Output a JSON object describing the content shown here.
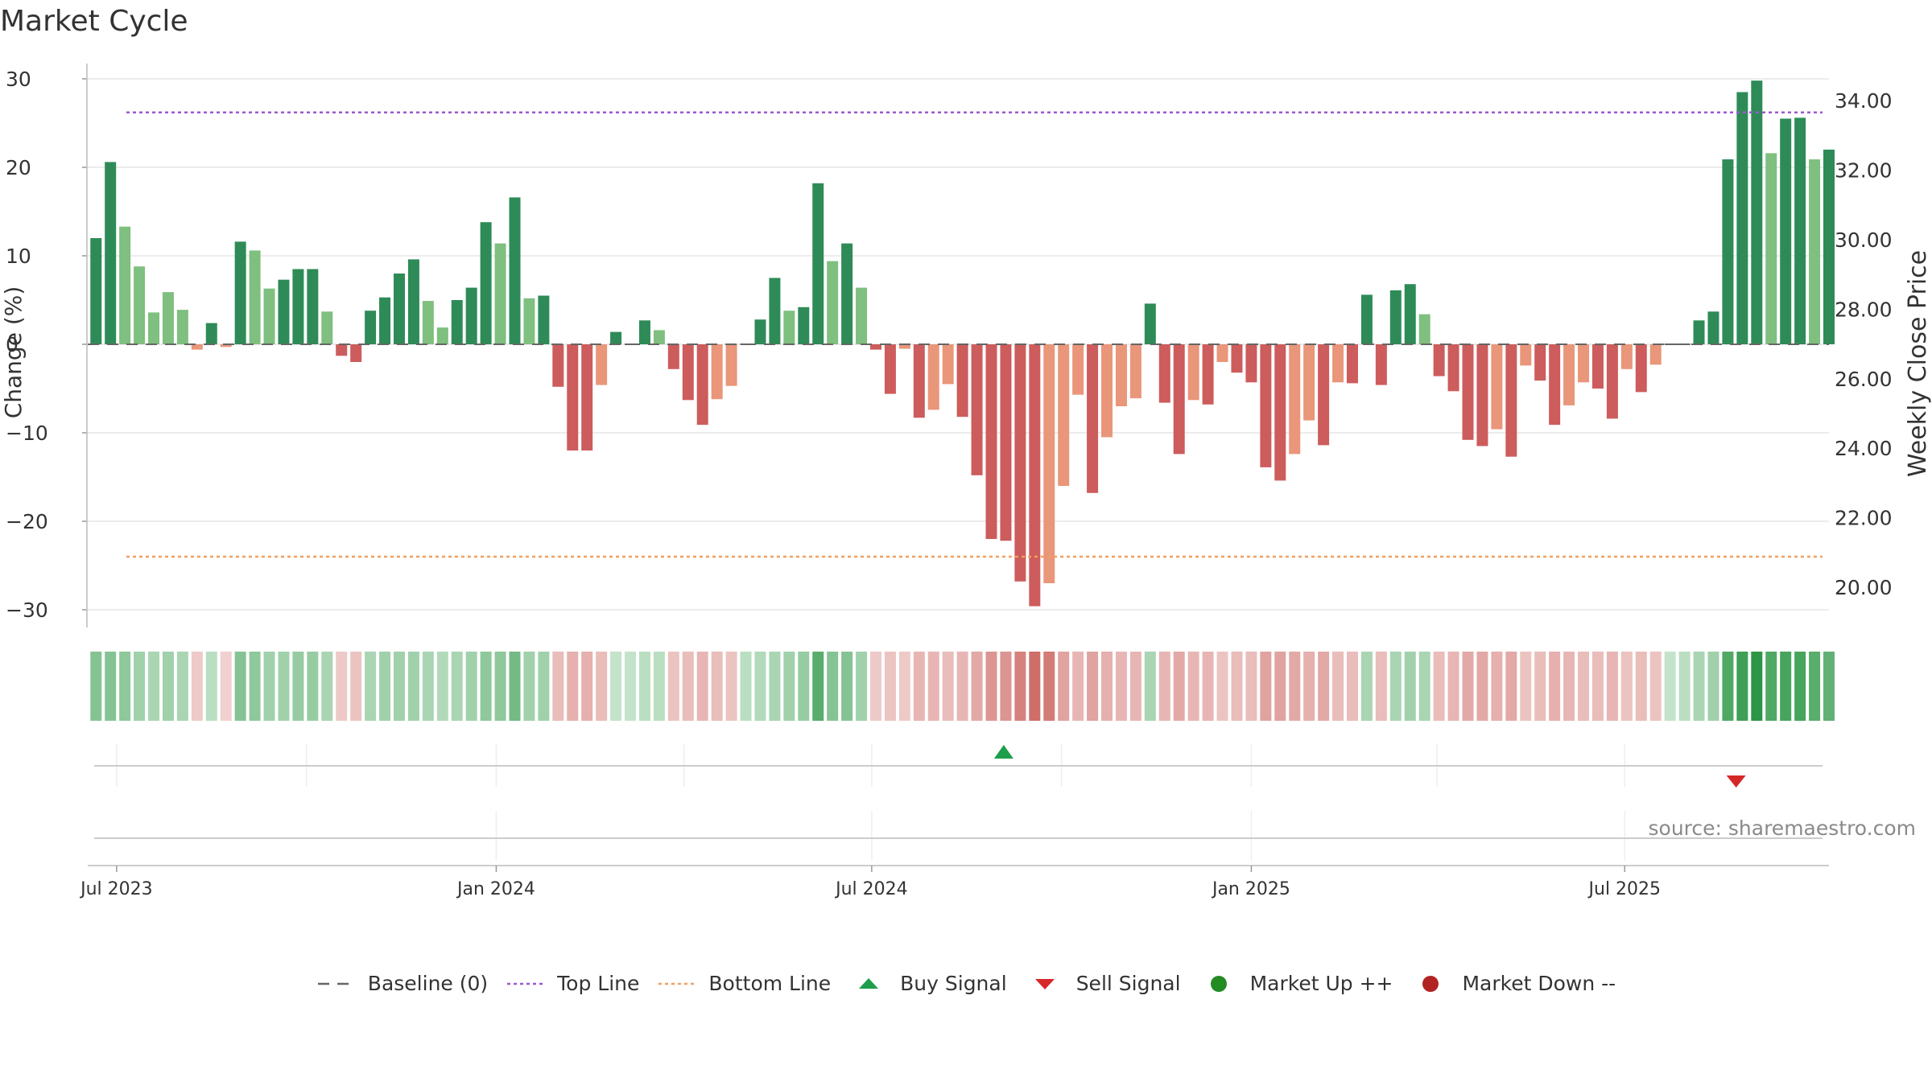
{
  "title": "Market Cycle",
  "source": "source: sharemaestro.com",
  "colors": {
    "up_strong": "#2e8b57",
    "up_light": "#7fbf7f",
    "down_strong": "#cd5c5c",
    "down_light": "#e9967a",
    "top_line": "#9b59d0",
    "bottom_line": "#f0a060",
    "buy": "#1e9e4a",
    "sell": "#d62728",
    "market_up": "#228b22",
    "market_down": "#b22222",
    "baseline": "#666666"
  },
  "legend": [
    {
      "name": "Baseline (0)",
      "type": "dash",
      "color": "#666666"
    },
    {
      "name": "Top Line",
      "type": "dot",
      "color": "#9b59d0"
    },
    {
      "name": "Bottom Line",
      "type": "dot",
      "color": "#f0a060"
    },
    {
      "name": "Buy Signal",
      "type": "tri-up",
      "color": "#1e9e4a"
    },
    {
      "name": "Sell Signal",
      "type": "tri-down",
      "color": "#d62728"
    },
    {
      "name": "Market Up ++",
      "type": "circle",
      "color": "#228b22"
    },
    {
      "name": "Market Down --",
      "type": "circle",
      "color": "#b22222"
    }
  ],
  "chart_data": {
    "type": "bar",
    "ylabel": "Change (%)",
    "y2label": "Weekly Close Price",
    "ylim": [
      -32,
      32
    ],
    "y2lim": [
      18.84,
      35.14
    ],
    "yticks": [
      30,
      20,
      10,
      0,
      -10,
      -20,
      -30
    ],
    "ytick_labels": [
      "30",
      "20",
      "10",
      "0",
      "−10",
      "−20",
      "−30"
    ],
    "y2ticks": [
      34,
      32,
      30,
      28,
      26,
      24,
      22,
      20
    ],
    "y2tick_labels": [
      "34.00",
      "32.00",
      "30.00",
      "28.00",
      "26.00",
      "24.00",
      "22.00",
      "20.00"
    ],
    "x_start": "2023-06-21",
    "x_step_days": 7,
    "xlim": [
      "2023-06-17",
      "2025-10-08"
    ],
    "xticks": [
      "2023-07-01",
      "2024-01-01",
      "2024-07-01",
      "2025-01-01",
      "2025-07-01"
    ],
    "xtick_labels": [
      "Jul 2023",
      "Jan 2024",
      "Jul 2024",
      "Jan 2025",
      "Jul 2025"
    ],
    "top_line": 26.2,
    "bottom_line": -24.0,
    "values": [
      12.0,
      20.6,
      13.3,
      8.8,
      3.6,
      5.9,
      3.9,
      -0.6,
      2.4,
      -0.3,
      11.6,
      10.6,
      6.3,
      7.3,
      8.5,
      8.5,
      3.7,
      -1.3,
      -2.0,
      3.8,
      5.3,
      8.0,
      9.6,
      4.9,
      1.9,
      5.0,
      6.4,
      13.8,
      11.4,
      16.6,
      5.2,
      5.5,
      -4.8,
      -12.0,
      -12.0,
      -4.6,
      1.4,
      0.0,
      2.7,
      1.6,
      -2.8,
      -6.3,
      -9.1,
      -6.2,
      -4.7,
      0.0,
      2.8,
      7.5,
      3.8,
      4.2,
      18.2,
      9.4,
      11.4,
      6.4,
      -0.6,
      -5.6,
      -0.5,
      -8.3,
      -7.4,
      -4.5,
      -8.2,
      -14.8,
      -22.0,
      -22.2,
      -26.8,
      -29.6,
      -27.0,
      -16.0,
      -5.7,
      -16.8,
      -10.5,
      -7.0,
      -6.1,
      4.6,
      -6.6,
      -12.4,
      -6.3,
      -6.8,
      -2.0,
      -3.2,
      -4.3,
      -13.9,
      -15.4,
      -12.4,
      -8.6,
      -11.4,
      -4.3,
      -4.4,
      5.6,
      -4.6,
      6.1,
      6.8,
      3.4,
      -3.6,
      -5.3,
      -10.8,
      -11.5,
      -9.6,
      -12.7,
      -2.4,
      -4.1,
      -9.1,
      -6.9,
      -4.3,
      -5.0,
      -8.4,
      -2.8,
      -5.4,
      -2.3,
      0.0,
      0.0,
      2.7,
      3.7,
      20.9,
      28.5,
      29.8,
      21.6,
      25.5,
      25.6,
      20.9,
      22.0
    ],
    "strength": [
      2,
      2,
      1,
      1,
      1,
      1,
      1,
      1,
      2,
      1,
      2,
      1,
      1,
      2,
      2,
      2,
      1,
      2,
      2,
      2,
      2,
      2,
      2,
      1,
      1,
      2,
      2,
      2,
      1,
      2,
      1,
      2,
      2,
      2,
      2,
      1,
      2,
      2,
      2,
      1,
      2,
      2,
      2,
      1,
      1,
      2,
      2,
      2,
      1,
      2,
      2,
      1,
      2,
      1,
      2,
      2,
      1,
      2,
      1,
      1,
      2,
      2,
      2,
      2,
      2,
      2,
      1,
      1,
      1,
      2,
      1,
      1,
      1,
      2,
      2,
      2,
      1,
      2,
      1,
      2,
      2,
      2,
      2,
      1,
      1,
      2,
      1,
      2,
      2,
      2,
      2,
      2,
      1,
      2,
      2,
      2,
      2,
      1,
      2,
      1,
      2,
      2,
      1,
      1,
      2,
      2,
      1,
      2,
      1,
      2,
      2,
      2,
      2,
      2,
      2,
      2,
      1,
      2,
      2,
      1,
      2
    ],
    "heat": [
      0.5,
      0.5,
      0.45,
      0.35,
      0.3,
      0.35,
      0.3,
      -0.15,
      0.2,
      -0.1,
      0.5,
      0.45,
      0.35,
      0.35,
      0.4,
      0.4,
      0.3,
      -0.15,
      -0.2,
      0.3,
      0.35,
      0.35,
      0.35,
      0.3,
      0.25,
      0.3,
      0.35,
      0.45,
      0.45,
      0.6,
      0.35,
      0.35,
      -0.25,
      -0.35,
      -0.35,
      -0.25,
      0.15,
      0.15,
      0.2,
      0.2,
      -0.2,
      -0.25,
      -0.3,
      -0.25,
      -0.2,
      0.2,
      0.25,
      0.3,
      0.35,
      0.4,
      0.75,
      0.5,
      0.5,
      0.35,
      -0.15,
      -0.2,
      -0.15,
      -0.3,
      -0.3,
      -0.25,
      -0.3,
      -0.4,
      -0.55,
      -0.55,
      -0.7,
      -0.85,
      -0.75,
      -0.45,
      -0.3,
      -0.45,
      -0.35,
      -0.3,
      -0.3,
      0.3,
      -0.3,
      -0.4,
      -0.3,
      -0.3,
      -0.2,
      -0.25,
      -0.25,
      -0.45,
      -0.45,
      -0.4,
      -0.35,
      -0.4,
      -0.25,
      -0.25,
      0.3,
      -0.25,
      0.3,
      0.35,
      0.3,
      -0.25,
      -0.3,
      -0.4,
      -0.4,
      -0.35,
      -0.4,
      -0.2,
      -0.25,
      -0.35,
      -0.3,
      -0.25,
      -0.25,
      -0.3,
      -0.2,
      -0.25,
      -0.2,
      0.15,
      0.2,
      0.3,
      0.35,
      0.8,
      0.9,
      1.0,
      0.8,
      0.85,
      0.85,
      0.75,
      0.7
    ],
    "signals": [
      {
        "type": "buy",
        "date": "2024-09-03"
      },
      {
        "type": "sell",
        "date": "2025-08-24"
      }
    ]
  }
}
